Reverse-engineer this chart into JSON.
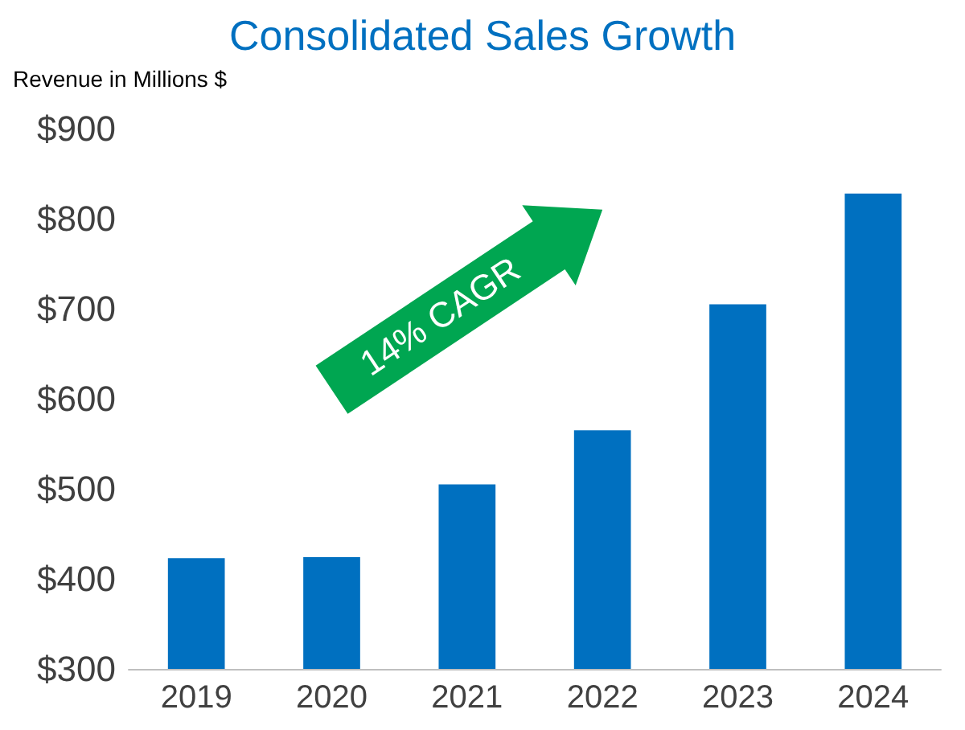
{
  "chart_data": {
    "type": "bar",
    "title": "Consolidated Sales Growth",
    "ylabel": "Revenue in Millions $",
    "categories": [
      "2019",
      "2020",
      "2021",
      "2022",
      "2023",
      "2024"
    ],
    "values": [
      423,
      424,
      505,
      565,
      705,
      828
    ],
    "color": "#0070c0",
    "ylim": [
      300,
      900
    ],
    "yticks": [
      {
        "value": 300,
        "label": "$300"
      },
      {
        "value": 400,
        "label": "$400"
      },
      {
        "value": 500,
        "label": "$500"
      },
      {
        "value": 600,
        "label": "$600"
      },
      {
        "value": 700,
        "label": "$700"
      },
      {
        "value": 800,
        "label": "$800"
      },
      {
        "value": 900,
        "label": "$900"
      }
    ],
    "annotations": [
      "14% CAGR"
    ],
    "grid": false
  }
}
